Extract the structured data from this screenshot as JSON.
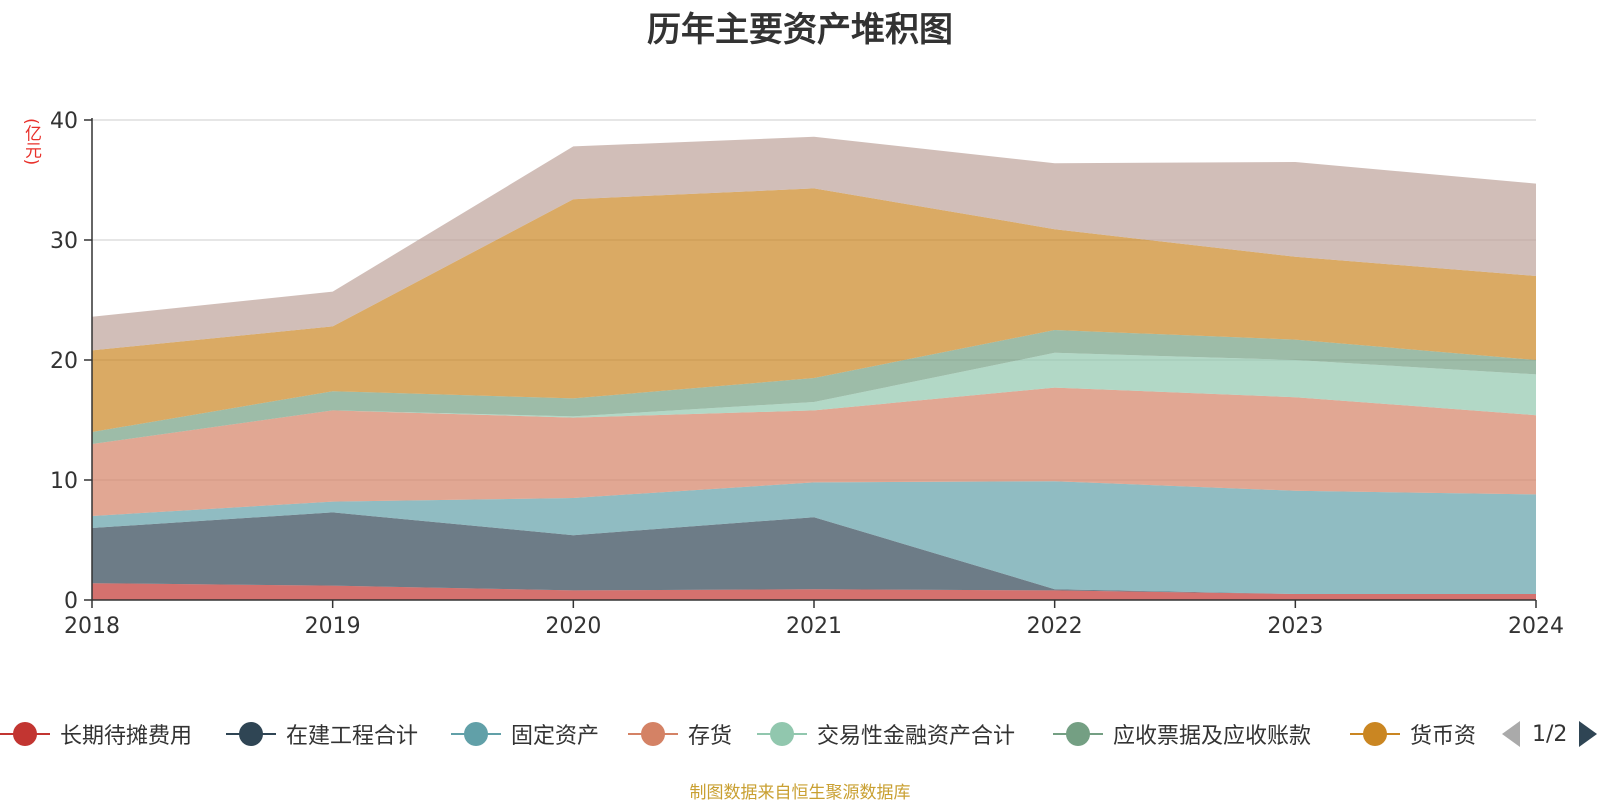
{
  "chart_data": {
    "type": "area",
    "stacked": true,
    "title": "历年主要资产堆积图",
    "unit_label": "(亿元)",
    "x": [
      "2018",
      "2019",
      "2020",
      "2021",
      "2022",
      "2023",
      "2024"
    ],
    "yticks": [
      "0",
      "10",
      "20",
      "30",
      "40"
    ],
    "ylim": [
      0,
      40
    ],
    "grid": true,
    "legend_position": "bottom",
    "series": [
      {
        "name": "长期待摊费用",
        "color": "#c23531",
        "values": [
          1.4,
          1.2,
          0.8,
          0.9,
          0.8,
          0.5,
          0.5
        ]
      },
      {
        "name": "在建工程合计",
        "color": "#2f4554",
        "values": [
          4.6,
          6.1,
          4.6,
          6.0,
          0.1,
          0.0,
          0.0
        ]
      },
      {
        "name": "固定资产",
        "color": "#61a0a8",
        "values": [
          1.0,
          0.9,
          3.1,
          2.9,
          9.0,
          8.6,
          8.3
        ]
      },
      {
        "name": "存货",
        "color": "#d48265",
        "values": [
          6.0,
          7.6,
          6.7,
          6.0,
          7.8,
          7.8,
          6.6
        ]
      },
      {
        "name": "交易性金融资产合计",
        "color": "#91c7ae",
        "values": [
          0.0,
          0.0,
          0.1,
          0.7,
          2.9,
          3.1,
          3.4
        ]
      },
      {
        "name": "应收票据及应收账款",
        "color": "#749f83",
        "values": [
          1.0,
          1.6,
          1.5,
          2.0,
          1.9,
          1.7,
          1.2
        ]
      },
      {
        "name": "货币资金",
        "color": "#ca8622",
        "values": [
          6.8,
          5.4,
          16.6,
          15.8,
          8.4,
          6.9,
          7.0
        ]
      },
      {
        "name": "",
        "color": "#bda29a",
        "values": [
          2.8,
          2.9,
          4.4,
          4.3,
          5.5,
          7.9,
          7.7
        ]
      }
    ]
  },
  "legend": {
    "items": [
      {
        "label": "长期待摊费用",
        "color": "#c23531"
      },
      {
        "label": "在建工程合计",
        "color": "#2f4554"
      },
      {
        "label": "固定资产",
        "color": "#61a0a8"
      },
      {
        "label": "存货",
        "color": "#d48265"
      },
      {
        "label": "交易性金融资产合计",
        "color": "#91c7ae"
      },
      {
        "label": "应收票据及应收账款",
        "color": "#749f83"
      },
      {
        "label": "货币资",
        "color": "#ca8622"
      }
    ],
    "page_indicator": "1/2"
  },
  "source_note": "制图数据来自恒生聚源数据库"
}
